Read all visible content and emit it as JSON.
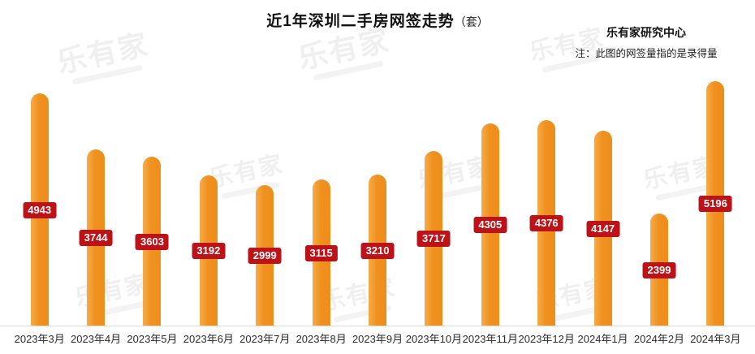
{
  "title": {
    "main": "近1年深圳二手房网签走势",
    "unit": "（套）"
  },
  "header_right": {
    "org": "乐有家研究中心",
    "note": "注：此图的网签量指的是录得量"
  },
  "watermark": {
    "text": "乐有家"
  },
  "colors": {
    "bar": "#ef9120",
    "bar_highlight": "#f6ab48",
    "badge": "#bd1218",
    "axis_line": "#dadada"
  },
  "chart_data": {
    "type": "bar",
    "title": "近1年深圳二手房网签走势（套）",
    "categories": [
      "2023年3月",
      "2023年4月",
      "2023年5月",
      "2023年6月",
      "2023年7月",
      "2023年8月",
      "2023年9月",
      "2023年10月",
      "2023年11月",
      "2023年12月",
      "2024年1月",
      "2024年2月",
      "2024年3月"
    ],
    "values": [
      4943,
      3744,
      3603,
      3192,
      2999,
      3115,
      3210,
      3717,
      4305,
      4376,
      4147,
      2399,
      5196
    ],
    "xlabel": "",
    "ylabel": "",
    "ylim": [
      0,
      5400
    ],
    "grid": false,
    "legend": false,
    "bar_color": "#ef9120",
    "value_labels": "red badge centered at bar midpoint"
  }
}
